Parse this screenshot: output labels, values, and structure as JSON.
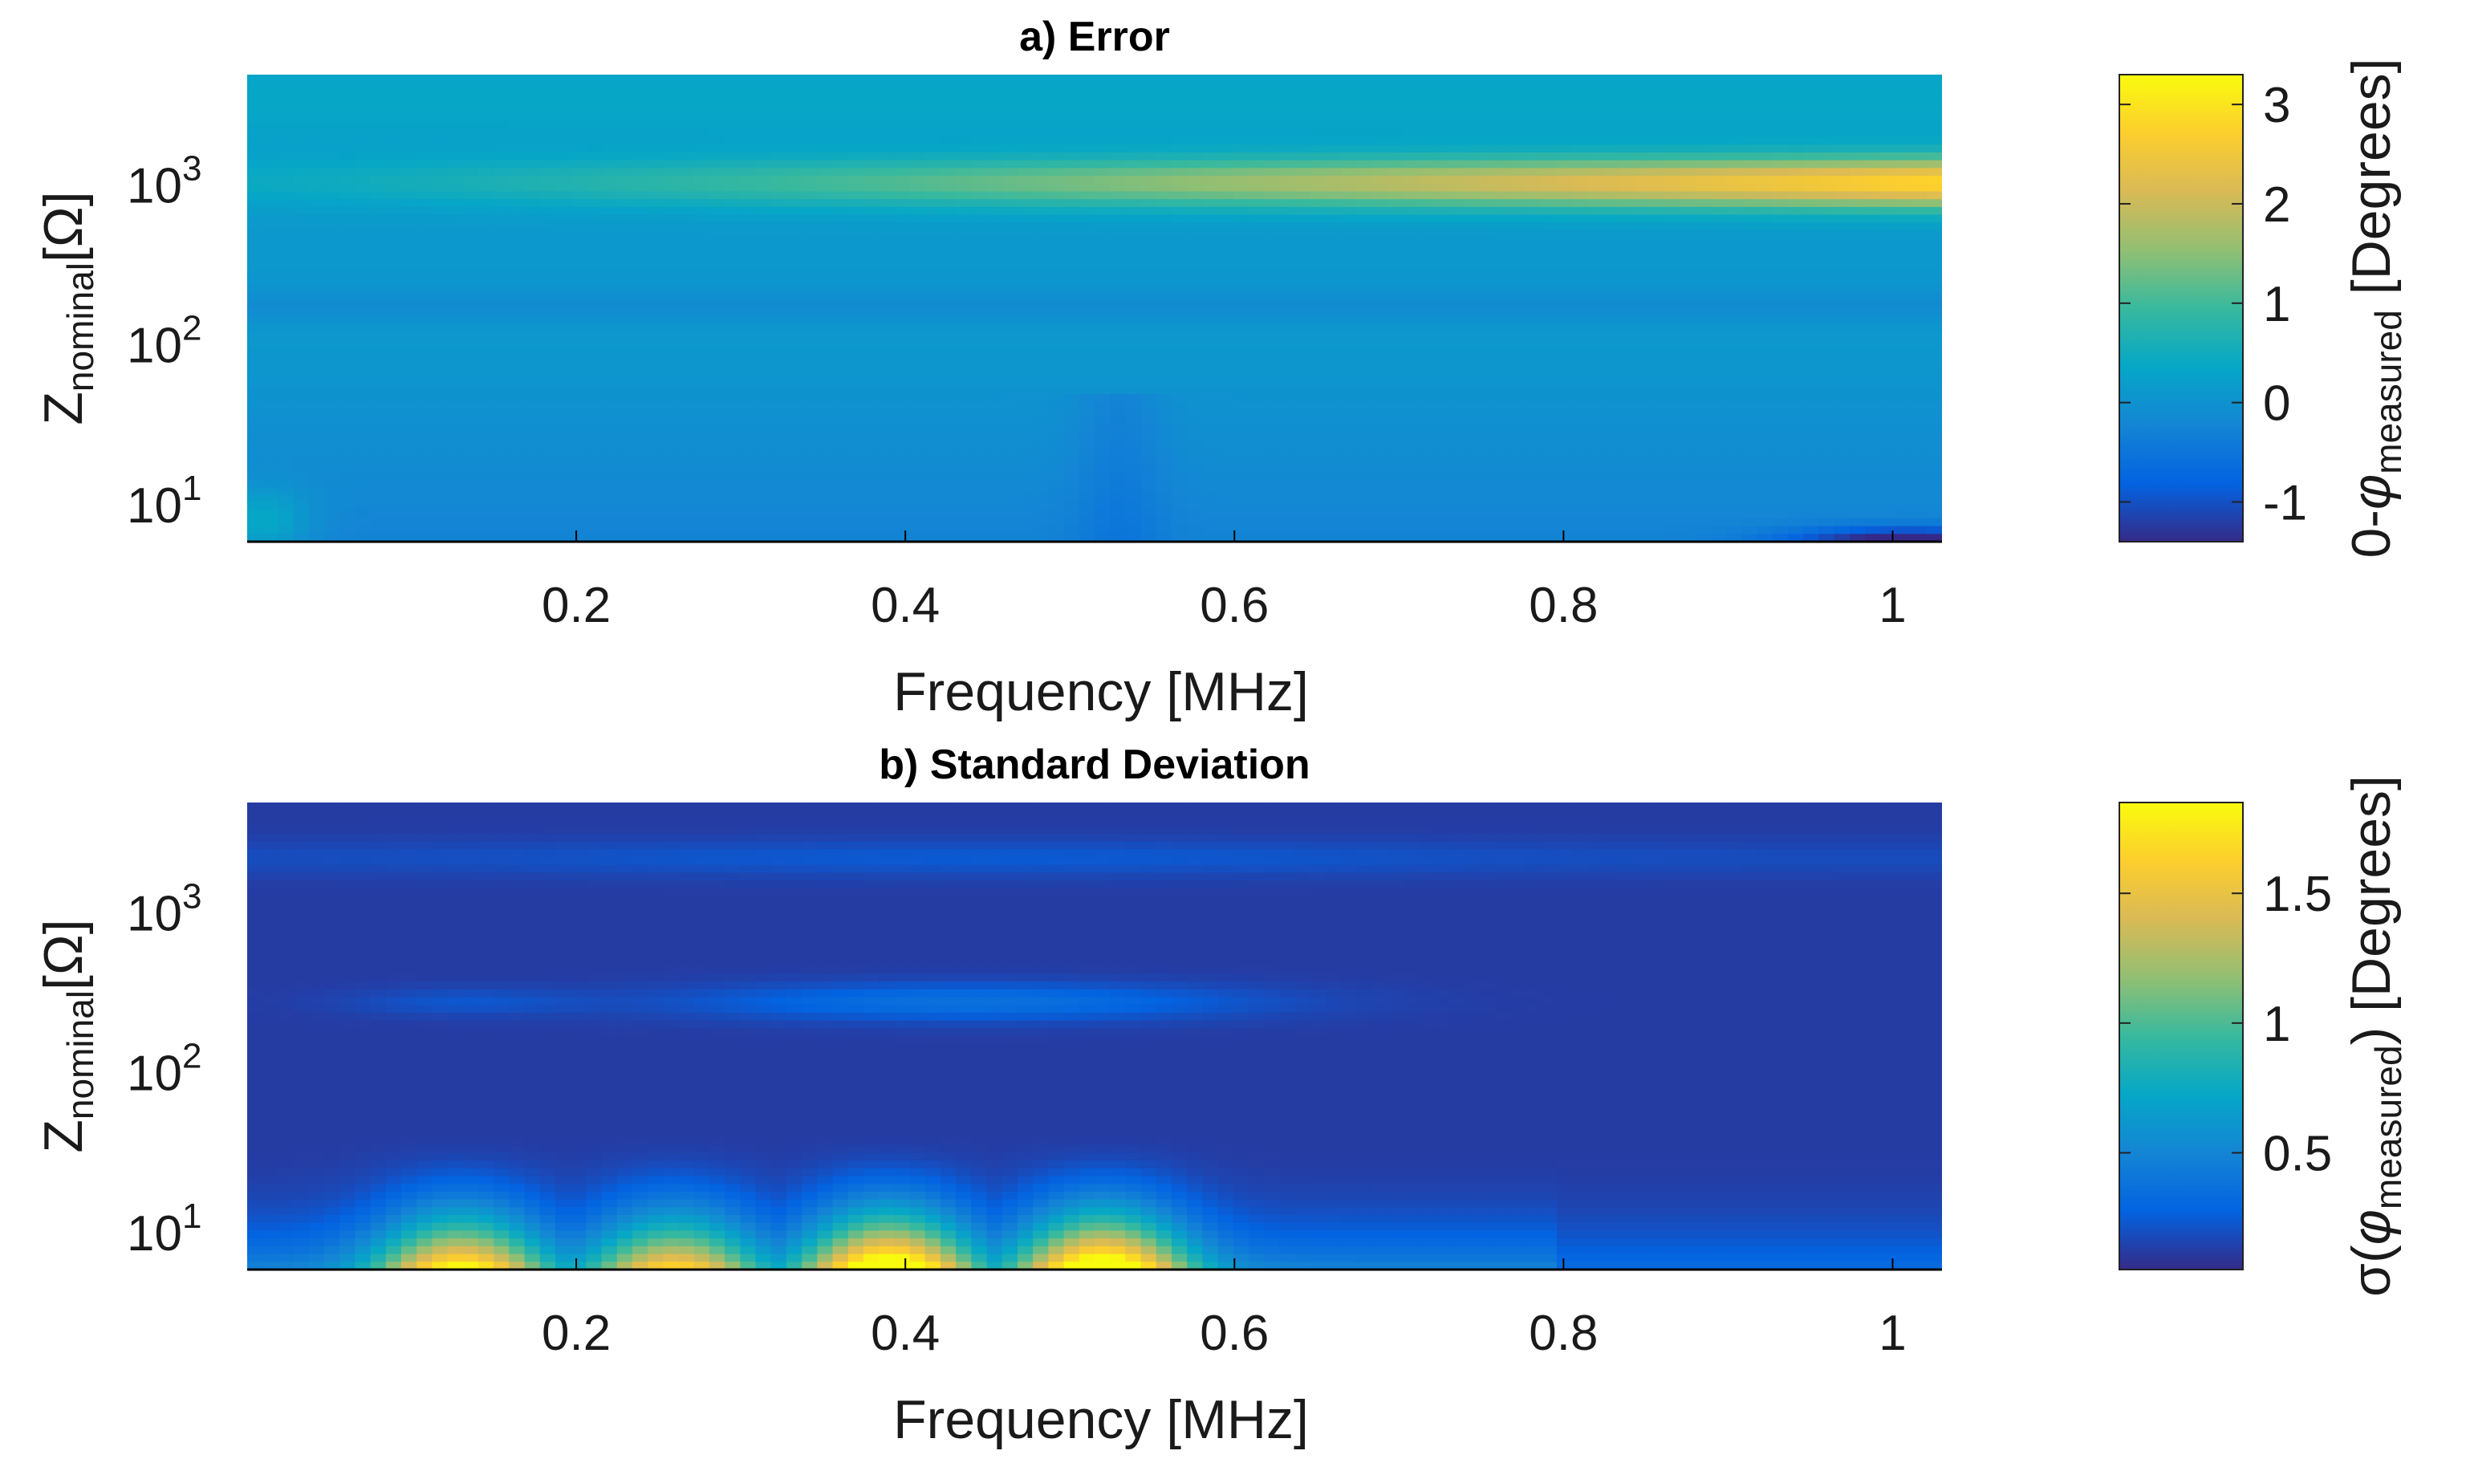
{
  "chart_data": [
    {
      "type": "heatmap",
      "title": "a) Error",
      "xlabel": "Frequency [MHz]",
      "ylabel": {
        "main": "Z",
        "sub": "nominal",
        "unit": "[Ω]"
      },
      "x_ticks": [
        "0.2",
        "0.4",
        "0.6",
        "0.8",
        "1"
      ],
      "x_tick_values": [
        0.2,
        0.4,
        0.6,
        0.8,
        1.0
      ],
      "xlim": [
        0.0,
        1.03
      ],
      "y_scale": "log",
      "ylim": [
        6,
        5000
      ],
      "y_ticks": [
        {
          "base": "10",
          "exp": "1",
          "value": 10
        },
        {
          "base": "10",
          "exp": "2",
          "value": 100
        },
        {
          "base": "10",
          "exp": "3",
          "value": 1000
        }
      ],
      "colorbar": {
        "label_prefix": "0-",
        "label_phi": "φ",
        "label_sub": "measured",
        "label_suffix": " [Degrees]",
        "ticks": [
          "3",
          "2",
          "1",
          "0",
          "-1"
        ],
        "tick_values": [
          3,
          2,
          1,
          0,
          -1
        ],
        "range": [
          -1.4,
          3.3
        ]
      },
      "description_values": {
        "background": 0.1,
        "peak_band_log10_z": 3.0,
        "peak_value_at_1MHz": 2.7,
        "low_region_value": -0.3,
        "corner_min": -1.3
      }
    },
    {
      "type": "heatmap",
      "title": "b) Standard Deviation",
      "xlabel": "Frequency [MHz]",
      "ylabel": {
        "main": "Z",
        "sub": "nominal",
        "unit": "[Ω]"
      },
      "x_ticks": [
        "0.2",
        "0.4",
        "0.6",
        "0.8",
        "1"
      ],
      "x_tick_values": [
        0.2,
        0.4,
        0.6,
        0.8,
        1.0
      ],
      "xlim": [
        0.0,
        1.03
      ],
      "y_scale": "log",
      "ylim": [
        6,
        5000
      ],
      "y_ticks": [
        {
          "base": "10",
          "exp": "1",
          "value": 10
        },
        {
          "base": "10",
          "exp": "2",
          "value": 100
        },
        {
          "base": "10",
          "exp": "3",
          "value": 1000
        }
      ],
      "colorbar": {
        "label_prefix": "σ(",
        "label_phi": "φ",
        "label_sub": "measured",
        "label_suffix": ") [Degrees]",
        "ticks": [
          "1.5",
          "1",
          "0.5"
        ],
        "tick_values": [
          1.5,
          1.0,
          0.5
        ],
        "range": [
          0.05,
          1.85
        ]
      },
      "hotspots": [
        {
          "x": 0.13,
          "z": 7,
          "value": 1.5
        },
        {
          "x": 0.26,
          "z": 7,
          "value": 1.3
        },
        {
          "x": 0.39,
          "z": 7,
          "value": 1.8
        },
        {
          "x": 0.52,
          "z": 7,
          "value": 1.8
        }
      ]
    }
  ],
  "colormap": "parula"
}
